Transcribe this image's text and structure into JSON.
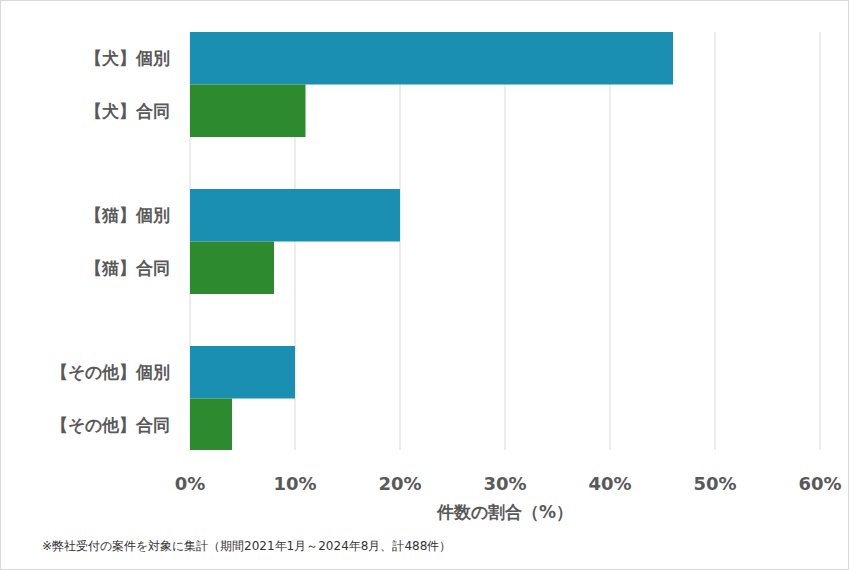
{
  "chart_data": {
    "type": "bar",
    "orientation": "horizontal",
    "categories": [
      "【犬】個別",
      "【犬】合同",
      "【猫】個別",
      "【猫】合同",
      "【その他】個別",
      "【その他】合同"
    ],
    "values": [
      46,
      11,
      20,
      8,
      10,
      4
    ],
    "colors": [
      "#1a8fb1",
      "#2e8a2e",
      "#1a8fb1",
      "#2e8a2e",
      "#1a8fb1",
      "#2e8a2e"
    ],
    "xlim": [
      0,
      60
    ],
    "xticks": [
      {
        "value": 0,
        "label": "0%"
      },
      {
        "value": 10,
        "label": "10%"
      },
      {
        "value": 20,
        "label": "20%"
      },
      {
        "value": 30,
        "label": "30%"
      },
      {
        "value": 40,
        "label": "40%"
      },
      {
        "value": 50,
        "label": "50%"
      },
      {
        "value": 60,
        "label": "60%"
      }
    ],
    "xlabel": "件数の割合（%）",
    "annotation": "※弊社受付の案件を対象に集計（期間2021年1月～2024年8月、計488件）",
    "grid": true
  }
}
